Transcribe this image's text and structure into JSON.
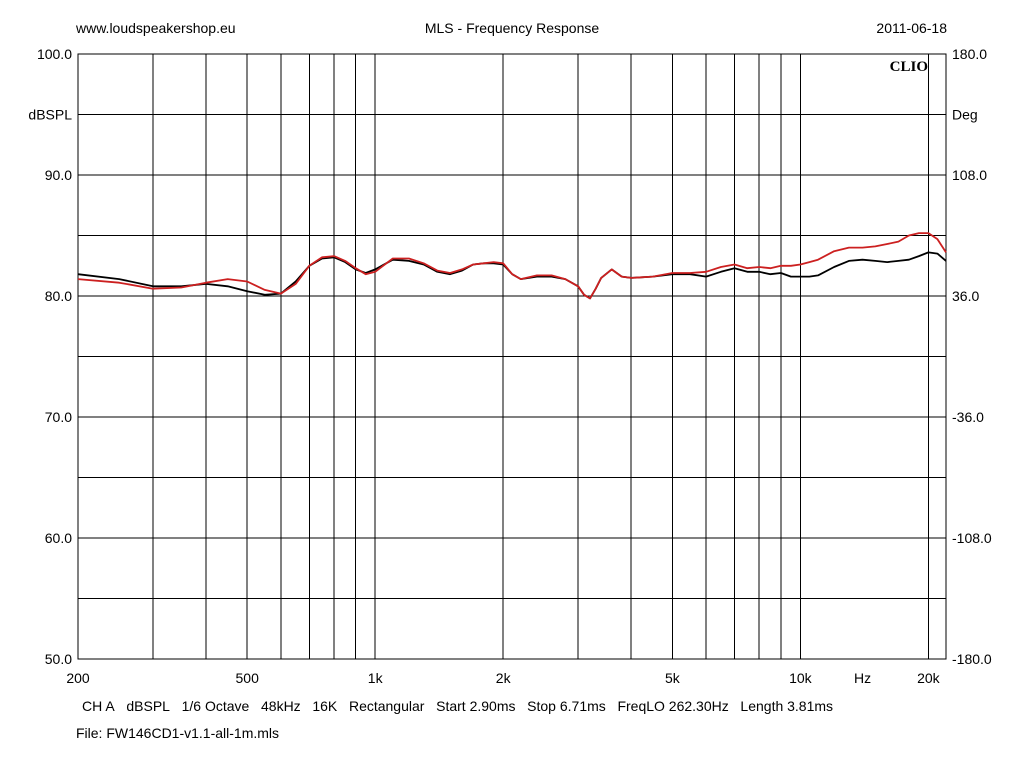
{
  "header": {
    "site": "www.loudspeakershop.eu",
    "title": "MLS - Frequency Response",
    "date": "2011-06-18"
  },
  "footer": {
    "params": [
      "CH A",
      "dBSPL",
      "1/6 Octave",
      "48kHz",
      "16K",
      "Rectangular",
      "Start 2.90ms",
      "Stop 6.71ms",
      "FreqLO 262.30Hz",
      "Length 3.81ms"
    ],
    "file": "File: FW146CD1-v1.1-all-1m.mls"
  },
  "chart_data": {
    "type": "line",
    "brand": "CLIO",
    "xscale": "log",
    "xlim": [
      200,
      22000
    ],
    "ylim": [
      50,
      100
    ],
    "y2lim": [
      -180,
      180
    ],
    "ylabel": "dBSPL",
    "y2label": "Deg",
    "xunit": "Hz",
    "grid": true,
    "colors": {
      "series_black": "#000000",
      "series_red": "#cc2020",
      "grid": "#000000"
    },
    "x_ticks": [
      {
        "value": 200,
        "label": "200"
      },
      {
        "value": 500,
        "label": "500"
      },
      {
        "value": 1000,
        "label": "1k"
      },
      {
        "value": 2000,
        "label": "2k"
      },
      {
        "value": 5000,
        "label": "5k"
      },
      {
        "value": 10000,
        "label": "10k"
      },
      {
        "value": 20000,
        "label": "20k"
      }
    ],
    "x_grid": [
      300,
      400,
      500,
      600,
      700,
      800,
      900,
      1000,
      2000,
      3000,
      4000,
      5000,
      6000,
      7000,
      8000,
      9000,
      10000,
      20000
    ],
    "y_ticks": [
      {
        "value": 100,
        "label": "100.0"
      },
      {
        "value": 90,
        "label": "90.0"
      },
      {
        "value": 80,
        "label": "80.0"
      },
      {
        "value": 70,
        "label": "70.0"
      },
      {
        "value": 60,
        "label": "60.0"
      },
      {
        "value": 50,
        "label": "50.0"
      }
    ],
    "y_grid": [
      95,
      90,
      85,
      80,
      75,
      70,
      65,
      60,
      55
    ],
    "y2_ticks": [
      {
        "value": 180,
        "label": "180.0"
      },
      {
        "value": 108,
        "label": "108.0"
      },
      {
        "value": 36,
        "label": "36.0"
      },
      {
        "value": -36,
        "label": "-36.0"
      },
      {
        "value": -108,
        "label": "-108.0"
      },
      {
        "value": -180,
        "label": "-180.0"
      }
    ],
    "series": [
      {
        "color": "#000000",
        "x": [
          200,
          250,
          300,
          350,
          400,
          450,
          500,
          550,
          600,
          650,
          700,
          750,
          800,
          850,
          900,
          950,
          1000,
          1100,
          1200,
          1300,
          1400,
          1500,
          1600,
          1700,
          1800,
          1900,
          2000,
          2100,
          2200,
          2400,
          2600,
          2800,
          3000,
          3100,
          3200,
          3300,
          3400,
          3600,
          3800,
          4000,
          4500,
          5000,
          5500,
          6000,
          6500,
          7000,
          7500,
          8000,
          8500,
          9000,
          9500,
          10000,
          10500,
          11000,
          12000,
          13000,
          14000,
          15000,
          16000,
          17000,
          18000,
          19000,
          20000,
          21000,
          22000
        ],
        "y": [
          81.8,
          81.4,
          80.8,
          80.8,
          81.0,
          80.8,
          80.4,
          80.1,
          80.2,
          81.2,
          82.5,
          83.1,
          83.2,
          82.8,
          82.2,
          81.9,
          82.2,
          83.0,
          82.9,
          82.6,
          82.0,
          81.8,
          82.1,
          82.6,
          82.7,
          82.7,
          82.6,
          81.8,
          81.4,
          81.6,
          81.6,
          81.4,
          80.8,
          80.1,
          79.8,
          80.6,
          81.5,
          82.2,
          81.6,
          81.5,
          81.6,
          81.8,
          81.8,
          81.6,
          82.0,
          82.3,
          82.0,
          82.0,
          81.8,
          81.9,
          81.6,
          81.6,
          81.6,
          81.7,
          82.4,
          82.9,
          83.0,
          82.9,
          82.8,
          82.9,
          83.0,
          83.3,
          83.6,
          83.5,
          82.9
        ]
      },
      {
        "color": "#cc2020",
        "x": [
          200,
          250,
          300,
          350,
          400,
          450,
          500,
          550,
          600,
          650,
          700,
          750,
          800,
          850,
          900,
          950,
          1000,
          1100,
          1200,
          1300,
          1400,
          1500,
          1600,
          1700,
          1800,
          1900,
          2000,
          2100,
          2200,
          2400,
          2600,
          2800,
          3000,
          3100,
          3200,
          3300,
          3400,
          3600,
          3800,
          4000,
          4500,
          5000,
          5500,
          6000,
          6500,
          7000,
          7500,
          8000,
          8500,
          9000,
          9500,
          10000,
          10500,
          11000,
          12000,
          13000,
          14000,
          15000,
          16000,
          17000,
          18000,
          19000,
          20000,
          21000,
          22000
        ],
        "y": [
          81.4,
          81.1,
          80.6,
          80.7,
          81.1,
          81.4,
          81.2,
          80.5,
          80.2,
          81.0,
          82.5,
          83.2,
          83.3,
          82.9,
          82.3,
          81.8,
          82.0,
          83.1,
          83.1,
          82.7,
          82.1,
          81.9,
          82.2,
          82.6,
          82.7,
          82.8,
          82.7,
          81.8,
          81.4,
          81.7,
          81.7,
          81.4,
          80.8,
          80.1,
          79.8,
          80.6,
          81.5,
          82.2,
          81.6,
          81.5,
          81.6,
          81.9,
          81.9,
          82.0,
          82.4,
          82.6,
          82.3,
          82.4,
          82.3,
          82.5,
          82.5,
          82.6,
          82.8,
          83.0,
          83.7,
          84.0,
          84.0,
          84.1,
          84.3,
          84.5,
          85.0,
          85.2,
          85.2,
          84.7,
          83.6
        ]
      }
    ]
  }
}
